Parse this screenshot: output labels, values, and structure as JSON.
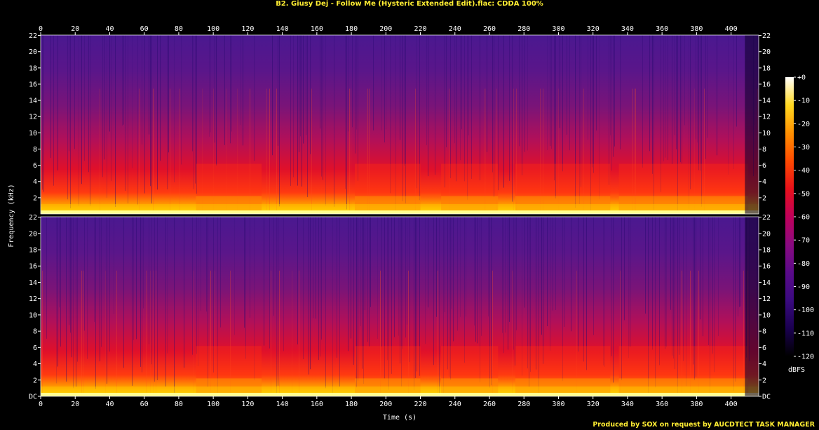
{
  "title": "B2. Giusy Dej - Follow Me (Hysteric Extended Edit).flac: CDDA 100%",
  "footer": "Produced by SOX on request by AUCDTECT TASK MANAGER",
  "chart_data": {
    "type": "heatmap",
    "title": "B2. Giusy Dej - Follow Me (Hysteric Extended Edit).flac: CDDA 100%",
    "xlabel": "Time (s)",
    "ylabel": "Frequency (kHz)",
    "xlim": [
      0,
      416
    ],
    "ylim": [
      0,
      22.05
    ],
    "x_ticks": [
      "0",
      "20",
      "40",
      "60",
      "80",
      "100",
      "120",
      "140",
      "160",
      "180",
      "200",
      "220",
      "240",
      "260",
      "280",
      "300",
      "320",
      "340",
      "360",
      "380",
      "400"
    ],
    "y_ticks_top": [
      "2",
      "4",
      "6",
      "8",
      "10",
      "12",
      "14",
      "16",
      "18",
      "20",
      "22"
    ],
    "y_ticks_bottom": [
      "DC",
      "2",
      "4",
      "6",
      "8",
      "10",
      "12",
      "14",
      "16",
      "18",
      "20",
      "22"
    ],
    "channels": 2,
    "colorbar": {
      "label": "dBFS",
      "range": [
        -120,
        0
      ],
      "ticks": [
        "+0",
        "-10",
        "-20",
        "-30",
        "-40",
        "-50",
        "-60",
        "-70",
        "-80",
        "-90",
        "-100",
        "-110",
        "-120"
      ],
      "colors": [
        "#000000",
        "#1a0050",
        "#4a0a8a",
        "#7a0a8a",
        "#b0006a",
        "#e8001c",
        "#ff3c00",
        "#ff8a00",
        "#ffd000",
        "#ffff80",
        "#ffffff"
      ]
    },
    "grid": false
  }
}
